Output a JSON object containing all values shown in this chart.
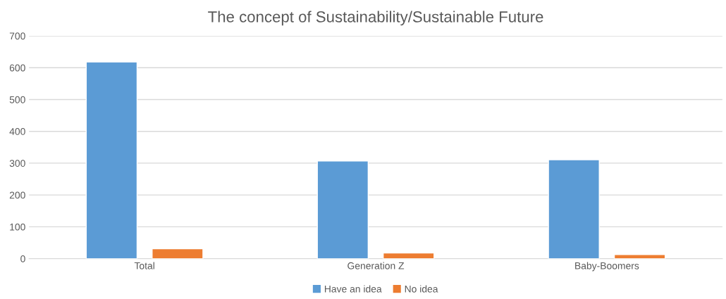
{
  "chart_data": {
    "type": "bar",
    "title": "The concept of Sustainability/Sustainable Future",
    "categories": [
      "Total",
      "Generation Z",
      "Baby-Boomers"
    ],
    "series": [
      {
        "name": "Have an idea",
        "color": "#5b9bd5",
        "values": [
          618,
          307,
          311
        ]
      },
      {
        "name": "No idea",
        "color": "#ed7d31",
        "values": [
          31,
          18,
          13
        ]
      }
    ],
    "ylim": [
      0,
      700
    ],
    "yticks": [
      0,
      100,
      200,
      300,
      400,
      500,
      600,
      700
    ],
    "grid": "y",
    "legend": "bottom"
  }
}
